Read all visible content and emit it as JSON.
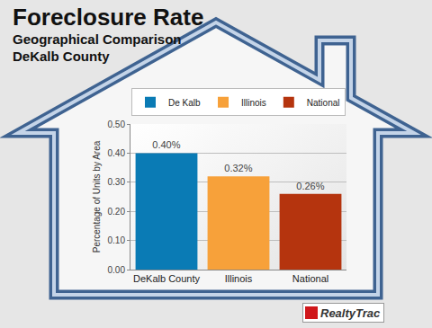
{
  "chart_data": {
    "type": "bar",
    "title": "Foreclosure Rate",
    "subtitle": [
      "Geographical Comparison",
      "DeKalb County"
    ],
    "annotations": [
      {
        "text": "RealtyTrac"
      }
    ],
    "ylabel": "Percentage of Units by Area",
    "categories": [
      "DeKalb County",
      "Illinois",
      "National"
    ],
    "series": [
      {
        "name": "De Kalb",
        "color": "#0a7bb5",
        "values": [
          0.4,
          null,
          null
        ],
        "value_labels": [
          "0.40%",
          null,
          null
        ]
      },
      {
        "name": "Illinois",
        "color": "#f7a13a",
        "values": [
          null,
          0.32,
          null
        ],
        "value_labels": [
          null,
          "0.32%",
          null
        ]
      },
      {
        "name": "National",
        "color": "#b5340e",
        "values": [
          null,
          null,
          0.26
        ],
        "value_labels": [
          null,
          null,
          "0.26%"
        ]
      }
    ],
    "ylim": [
      0,
      0.5
    ],
    "yticks": [
      {
        "value": 0,
        "label": "0.00"
      },
      {
        "value": 0.1,
        "label": "0.10"
      },
      {
        "value": 0.2,
        "label": "0.20"
      },
      {
        "value": 0.3,
        "label": "0.30"
      },
      {
        "value": 0.4,
        "label": "0.40"
      },
      {
        "value": 0.5,
        "label": "0.50"
      }
    ],
    "grid": true,
    "legend": "top",
    "data_labels": true
  }
}
